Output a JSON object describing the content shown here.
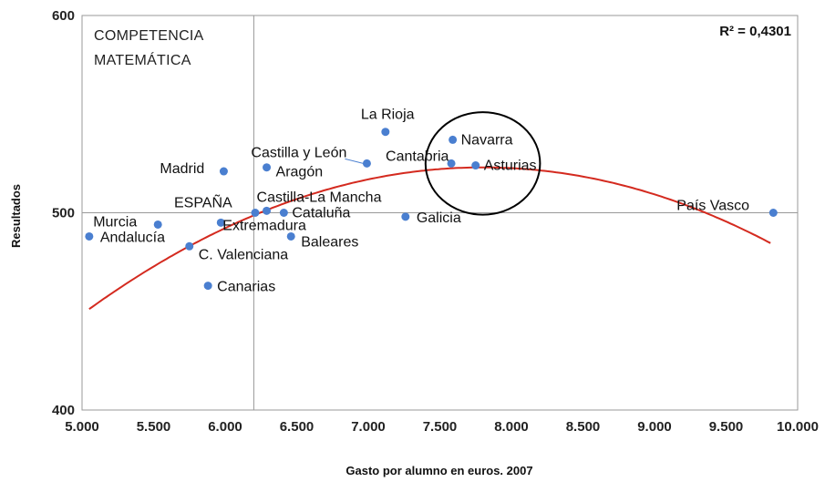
{
  "chart_data": {
    "type": "scatter",
    "panel_title_lines": [
      "COMPETENCIA",
      "MATEMÁTICA"
    ],
    "r_squared_label": "R² = 0,4301",
    "xlabel": "Gasto por alumno en euros. 2007",
    "ylabel": "Resultados",
    "xlim": [
      5000,
      10000
    ],
    "ylim": [
      400,
      600
    ],
    "x_ticks": [
      5000,
      5500,
      6000,
      6500,
      7000,
      7500,
      8000,
      8500,
      9000,
      9500,
      10000
    ],
    "x_tick_labels": [
      "5.000",
      "5.500",
      "6.000",
      "6.500",
      "7.000",
      "7.500",
      "8.000",
      "8.500",
      "9.000",
      "9.500",
      "10.000"
    ],
    "y_ticks": [
      400,
      500,
      600
    ],
    "y_tick_labels": [
      "400",
      "500",
      "600"
    ],
    "reference_lines": {
      "x": 6200,
      "y": 500
    },
    "grid": false,
    "point_color": "#4a7fd0",
    "trend_color": "#d42a1f",
    "trend_type": "polynomial order 2",
    "trend_x_range": [
      5050,
      9820
    ],
    "trend_peak": {
      "x": 7800,
      "y": 523
    },
    "trend_curvature": -9.5e-06,
    "highlight_circle": {
      "cx": 7800,
      "cy": 525,
      "rx": 400,
      "ry": 26
    },
    "points": [
      {
        "name": "La Rioja",
        "x": 7120,
        "y": 541
      },
      {
        "name": "Navarra",
        "x": 7590,
        "y": 537
      },
      {
        "name": "Cantabria",
        "x": 7580,
        "y": 525
      },
      {
        "name": "Asturias",
        "x": 7750,
        "y": 524
      },
      {
        "name": "Castilla y León",
        "x": 6990,
        "y": 525
      },
      {
        "name": "Madrid",
        "x": 5990,
        "y": 521
      },
      {
        "name": "Aragón",
        "x": 6290,
        "y": 523
      },
      {
        "name": "ESPAÑA",
        "x": 6210,
        "y": 500
      },
      {
        "name": "Castilla-La Mancha",
        "x": 6290,
        "y": 501
      },
      {
        "name": "Cataluña",
        "x": 6410,
        "y": 500
      },
      {
        "name": "Extremadura",
        "x": 5970,
        "y": 495
      },
      {
        "name": "Murcia",
        "x": 5530,
        "y": 494
      },
      {
        "name": "Andalucía",
        "x": 5050,
        "y": 488
      },
      {
        "name": "C. Valenciana",
        "x": 5750,
        "y": 483
      },
      {
        "name": "Baleares",
        "x": 6460,
        "y": 488
      },
      {
        "name": "Galicia",
        "x": 7260,
        "y": 498
      },
      {
        "name": "Canarias",
        "x": 5880,
        "y": 463
      },
      {
        "name": "País Vasco",
        "x": 9830,
        "y": 500
      }
    ]
  }
}
